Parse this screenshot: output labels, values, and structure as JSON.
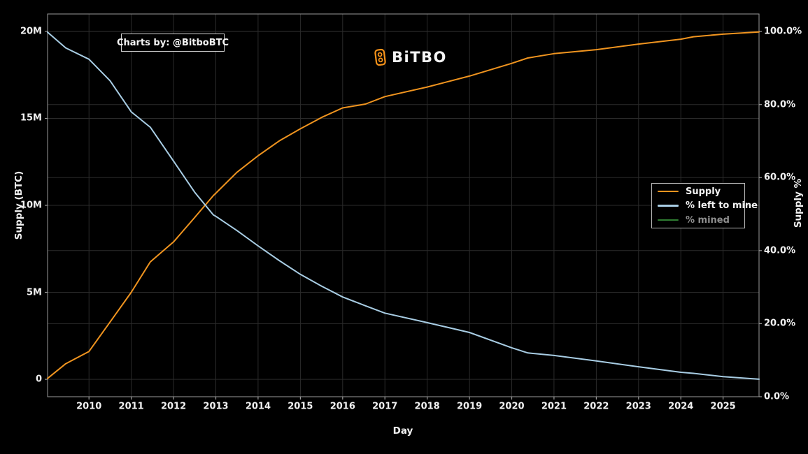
{
  "branding": {
    "credit": "Charts by: @BitboBTC",
    "logo_text": "BiTBO"
  },
  "colors": {
    "background": "#000000",
    "grid": "#2b2b2b",
    "spine": "#9a9a9a",
    "tick": "#9a9a9a",
    "text": "#f2f2f2",
    "muted_text": "#8f8f8f",
    "supply_line": "#f0941f",
    "pct_left_line": "#a8cde4",
    "pct_mined_line": "#2f7d32",
    "logo_orange": "#f7931a",
    "credit_border": "#d4d4d4",
    "legend_border": "#b8b8b8"
  },
  "chart_data": {
    "type": "line",
    "title": "",
    "xlabel": "Day",
    "ylabel_left": "Supply (BTC)",
    "ylabel_right": "Supply %",
    "grid": true,
    "legend_position": "center-right",
    "xlim": [
      2009.02,
      2025.85
    ],
    "ylim_left": [
      -1,
      21
    ],
    "ylim_right": [
      0,
      104.8
    ],
    "x_ticks": {
      "values": [
        2010,
        2011,
        2012,
        2013,
        2014,
        2015,
        2016,
        2017,
        2018,
        2019,
        2020,
        2021,
        2022,
        2023,
        2024,
        2025
      ],
      "labels": [
        "2010",
        "2011",
        "2012",
        "2013",
        "2014",
        "2015",
        "2016",
        "2017",
        "2018",
        "2019",
        "2020",
        "2021",
        "2022",
        "2023",
        "2024",
        "2025"
      ]
    },
    "left_ticks": {
      "values": [
        20,
        15,
        10,
        5,
        0
      ],
      "labels": [
        "20M",
        "15M",
        "10M",
        "5M",
        "0"
      ]
    },
    "right_ticks": {
      "values": [
        100,
        80,
        60,
        40,
        20,
        0
      ],
      "labels": [
        "100.0%",
        "80.0%",
        "60.0%",
        "40.0%",
        "20.0%",
        "0.0%"
      ]
    },
    "x": [
      2009.02,
      2009.45,
      2010.0,
      2010.5,
      2011.0,
      2011.45,
      2012.0,
      2012.5,
      2012.94,
      2013.0,
      2013.5,
      2014.0,
      2014.5,
      2015.0,
      2015.5,
      2016.0,
      2016.54,
      2017.0,
      2018.0,
      2019.0,
      2020.0,
      2020.38,
      2021.0,
      2022.0,
      2023.0,
      2024.0,
      2024.3,
      2025.0,
      2025.85
    ],
    "series": [
      {
        "name": "Supply",
        "axis": "left",
        "unit": "M BTC",
        "color": "#f0941f",
        "visible": true,
        "values": [
          0.05,
          0.9,
          1.6,
          3.3,
          5.0,
          6.75,
          7.9,
          9.3,
          10.56,
          10.7,
          11.9,
          12.85,
          13.7,
          14.4,
          15.05,
          15.6,
          15.82,
          16.25,
          16.8,
          17.43,
          18.16,
          18.47,
          18.72,
          18.95,
          19.27,
          19.55,
          19.69,
          19.84,
          19.97
        ]
      },
      {
        "name": "% left to mine",
        "axis": "right",
        "unit": "%",
        "color": "#a8cde4",
        "visible": true,
        "values": [
          99.8,
          95.5,
          92.4,
          86.5,
          78.0,
          73.8,
          64.5,
          56.0,
          49.8,
          49.4,
          45.5,
          41.3,
          37.3,
          33.5,
          30.3,
          27.3,
          24.9,
          22.9,
          20.3,
          17.6,
          13.4,
          12.0,
          11.3,
          9.8,
          8.2,
          6.7,
          6.4,
          5.5,
          4.8
        ]
      },
      {
        "name": "% mined",
        "axis": "right",
        "unit": "%",
        "color": "#2f7d32",
        "visible": false,
        "values": []
      }
    ]
  }
}
